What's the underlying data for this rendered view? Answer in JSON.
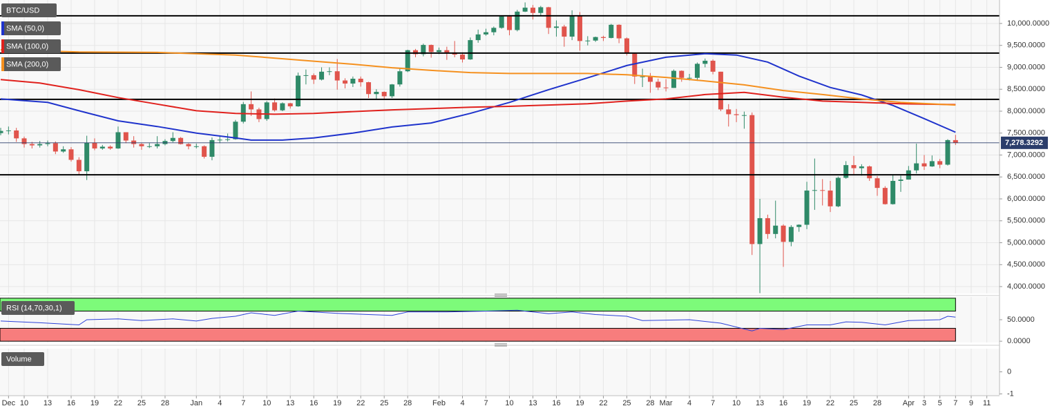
{
  "chart_data": [
    {
      "type": "candlestick",
      "title": "BTC/USD",
      "x": [
        0,
        1,
        2,
        3,
        4,
        5,
        6,
        7,
        8,
        9,
        10,
        11,
        12,
        13,
        14,
        15,
        16,
        17,
        18,
        19,
        20,
        21,
        22,
        23,
        24,
        25,
        26,
        27,
        28,
        29,
        30,
        31,
        32,
        33,
        34,
        35,
        36,
        37,
        38,
        39,
        40,
        41,
        42,
        43,
        44,
        45,
        46,
        47,
        48,
        49,
        50,
        51,
        52,
        53,
        54,
        55,
        56,
        57,
        58,
        59,
        60,
        61,
        62,
        63,
        64,
        65,
        66,
        67,
        68,
        69,
        70,
        71,
        72,
        73,
        74,
        75,
        76,
        77,
        78,
        79,
        80,
        81,
        82,
        83,
        84,
        85,
        86,
        87,
        88,
        89,
        90,
        91,
        92,
        93,
        94,
        95,
        96,
        97,
        98,
        99,
        100,
        101,
        102,
        103,
        104,
        105,
        106,
        107,
        108,
        109,
        110,
        111,
        112,
        113,
        114,
        115,
        116,
        117,
        118,
        119,
        120,
        121,
        122
      ],
      "open": [
        7500,
        7550,
        7560,
        7380,
        7250,
        7220,
        7250,
        7270,
        7080,
        7130,
        6890,
        6630,
        7280,
        7150,
        7190,
        7150,
        7520,
        7330,
        7250,
        7200,
        7200,
        7250,
        7320,
        7390,
        7250,
        7200,
        7200,
        6960,
        7340,
        7350,
        7360,
        7760,
        8160,
        8040,
        7820,
        8200,
        8020,
        8180,
        8110,
        8810,
        8820,
        8720,
        8900,
        8910,
        8700,
        8630,
        8740,
        8660,
        8390,
        8440,
        8340,
        8610,
        8910,
        9390,
        9300,
        9510,
        9350,
        9390,
        9340,
        9290,
        9180,
        9620,
        9750,
        9800,
        9900,
        10160,
        9850,
        10270,
        10360,
        10240,
        10370,
        9900,
        9930,
        9700,
        10180,
        9600,
        9610,
        9690,
        9670,
        9970,
        9660,
        9310,
        8790,
        8790,
        8670,
        8540,
        8530,
        8920,
        8760,
        8760,
        9080,
        9150,
        8900,
        8040,
        7930,
        7910,
        7910,
        4970,
        5560,
        5200,
        5390,
        5020,
        5360,
        5410,
        6190,
        6200,
        6190,
        5830,
        6480,
        6770,
        6700,
        6740,
        6470,
        6250,
        5880,
        6410,
        6440,
        6650,
        6810,
        6740,
        6860,
        6780,
        7340
      ],
      "high": [
        7620,
        7650,
        7620,
        7420,
        7300,
        7320,
        7330,
        7310,
        7200,
        7180,
        6950,
        7440,
        7380,
        7230,
        7220,
        7650,
        7520,
        7430,
        7270,
        7270,
        7430,
        7360,
        7520,
        7410,
        7270,
        7260,
        7220,
        7400,
        7420,
        7490,
        7800,
        8210,
        8450,
        8080,
        8230,
        8290,
        8200,
        8190,
        8880,
        8950,
        8860,
        9000,
        9000,
        9190,
        8750,
        8790,
        8790,
        8670,
        8500,
        8450,
        8620,
        8970,
        9400,
        9420,
        9540,
        9520,
        9450,
        9470,
        9600,
        9340,
        9680,
        9860,
        9880,
        9930,
        10170,
        10190,
        10310,
        10480,
        10420,
        10400,
        10380,
        10070,
        9970,
        10300,
        10260,
        9710,
        9700,
        9720,
        9990,
        9980,
        9680,
        9320,
        8970,
        8870,
        8740,
        8730,
        8950,
        8930,
        8850,
        9110,
        9200,
        9180,
        8900,
        8160,
        8050,
        7990,
        7970,
        6000,
        5640,
        5960,
        5420,
        5400,
        5420,
        6390,
        6920,
        6450,
        6410,
        6510,
        6860,
        6980,
        6790,
        6760,
        6520,
        6290,
        6560,
        6530,
        6750,
        7260,
        7000,
        6990,
        6910,
        7360,
        7460
      ],
      "low": [
        7450,
        7470,
        7300,
        7170,
        7150,
        7170,
        7200,
        7020,
        7050,
        6850,
        6560,
        6430,
        7110,
        7120,
        7120,
        7140,
        7270,
        7170,
        7120,
        7160,
        7150,
        7220,
        7290,
        7240,
        7130,
        7150,
        6920,
        6880,
        7270,
        7310,
        7350,
        7720,
        7890,
        7750,
        7780,
        7990,
        8000,
        8060,
        8100,
        8610,
        8620,
        8700,
        8820,
        8490,
        8520,
        8550,
        8560,
        8300,
        8260,
        8260,
        8300,
        8560,
        8890,
        9230,
        9250,
        9220,
        9300,
        9170,
        9230,
        9110,
        9170,
        9560,
        9720,
        9730,
        9880,
        9730,
        9820,
        10260,
        10090,
        10180,
        9760,
        9700,
        9470,
        9620,
        9380,
        9500,
        9580,
        9600,
        9660,
        9550,
        9270,
        8620,
        8550,
        8420,
        8480,
        8450,
        8530,
        8670,
        8700,
        8690,
        9000,
        8840,
        8000,
        7650,
        7750,
        7600,
        4720,
        3850,
        5090,
        5100,
        4450,
        4920,
        5250,
        5310,
        5750,
        5850,
        5700,
        5810,
        6460,
        6540,
        6530,
        6410,
        6070,
        5870,
        5870,
        6160,
        6440,
        6580,
        6660,
        6730,
        6700,
        6760,
        7230
      ],
      "close": [
        7550,
        7560,
        7380,
        7250,
        7220,
        7250,
        7270,
        7080,
        7130,
        6890,
        6630,
        7280,
        7150,
        7190,
        7150,
        7520,
        7330,
        7250,
        7200,
        7200,
        7250,
        7320,
        7390,
        7250,
        7200,
        7200,
        6960,
        7340,
        7350,
        7360,
        7760,
        8160,
        8040,
        7820,
        8200,
        8020,
        8180,
        8110,
        8810,
        8820,
        8720,
        8900,
        8910,
        8700,
        8630,
        8740,
        8660,
        8390,
        8440,
        8340,
        8610,
        8910,
        9390,
        9300,
        9510,
        9350,
        9390,
        9340,
        9290,
        9180,
        9620,
        9750,
        9800,
        9900,
        10160,
        9850,
        10270,
        10360,
        10240,
        10370,
        9900,
        9930,
        9700,
        10180,
        9600,
        9610,
        9690,
        9670,
        9970,
        9660,
        9310,
        8790,
        8790,
        8670,
        8540,
        8530,
        8920,
        8760,
        8760,
        9080,
        9150,
        8900,
        8040,
        7930,
        7910,
        7910,
        4970,
        5560,
        5200,
        5390,
        5020,
        5360,
        5410,
        6190,
        6200,
        6190,
        5830,
        6480,
        6770,
        6700,
        6740,
        6470,
        6250,
        5880,
        6410,
        6440,
        6650,
        6810,
        6740,
        6860,
        6780,
        7340,
        7278.3292
      ],
      "last_price_label": "7,278.3292",
      "up_color": "#2f8a68",
      "down_color": "#e0544c",
      "series": [
        {
          "name": "SMA (50,0)",
          "color": "#1f33cc",
          "x": [
            0,
            6,
            10,
            15,
            20,
            25,
            30,
            32,
            36,
            40,
            45,
            50,
            55,
            60,
            65,
            70,
            75,
            80,
            85,
            90,
            94,
            98,
            102,
            106,
            110,
            114,
            118,
            122
          ],
          "values": [
            8280,
            8200,
            8010,
            7780,
            7650,
            7500,
            7390,
            7340,
            7340,
            7390,
            7500,
            7640,
            7730,
            7950,
            8200,
            8490,
            8760,
            9040,
            9230,
            9310,
            9280,
            9120,
            8800,
            8540,
            8370,
            8130,
            7830,
            7520
          ]
        },
        {
          "name": "SMA (100,0)",
          "color": "#e0201c",
          "x": [
            0,
            5,
            10,
            15,
            20,
            25,
            30,
            35,
            40,
            45,
            50,
            55,
            60,
            65,
            70,
            75,
            80,
            85,
            90,
            95,
            100,
            105,
            110,
            115,
            122
          ],
          "values": [
            8720,
            8640,
            8490,
            8310,
            8160,
            8010,
            7950,
            7930,
            7950,
            7990,
            8030,
            8060,
            8090,
            8110,
            8140,
            8170,
            8230,
            8280,
            8380,
            8430,
            8320,
            8230,
            8200,
            8170,
            8150
          ]
        },
        {
          "name": "SMA (200,0)",
          "color": "#f5901e",
          "x": [
            0,
            10,
            20,
            30,
            40,
            45,
            50,
            55,
            60,
            65,
            70,
            75,
            80,
            85,
            90,
            95,
            100,
            105,
            110,
            115,
            122
          ],
          "values": [
            9400,
            9350,
            9340,
            9280,
            9140,
            9070,
            8990,
            8930,
            8880,
            8860,
            8860,
            8860,
            8830,
            8770,
            8690,
            8600,
            8470,
            8380,
            8280,
            8200,
            8140
          ]
        }
      ],
      "hlines": [
        10175,
        9325,
        8270,
        6550
      ],
      "xlim": [
        -0.09,
        127.62
      ],
      "ylim": [
        3843,
        10535
      ],
      "yticks": [
        {
          "value": 4000,
          "label": "4,000.0000"
        },
        {
          "value": 4500,
          "label": "4,500.0000"
        },
        {
          "value": 5000,
          "label": "5,000.0000"
        },
        {
          "value": 5500,
          "label": "5,500.0000"
        },
        {
          "value": 6000,
          "label": "6,000.0000"
        },
        {
          "value": 6500,
          "label": "6,500.0000"
        },
        {
          "value": 7000,
          "label": "7,000.0000"
        },
        {
          "value": 7500,
          "label": "7,500.0000"
        },
        {
          "value": 8000,
          "label": "8,000.0000"
        },
        {
          "value": 8500,
          "label": "8,500.0000"
        },
        {
          "value": 9000,
          "label": "9,000.0000"
        },
        {
          "value": 9500,
          "label": "9,500.0000"
        },
        {
          "value": 10000,
          "label": "10,000.0000"
        }
      ],
      "xticks": [
        {
          "value": 1,
          "label": "Dec"
        },
        {
          "value": 3,
          "label": "10"
        },
        {
          "value": 6,
          "label": "13"
        },
        {
          "value": 9,
          "label": "16"
        },
        {
          "value": 12,
          "label": "19"
        },
        {
          "value": 15,
          "label": "22"
        },
        {
          "value": 18,
          "label": "25"
        },
        {
          "value": 21,
          "label": "28"
        },
        {
          "value": 25,
          "label": "Jan"
        },
        {
          "value": 28,
          "label": "4"
        },
        {
          "value": 31,
          "label": "7"
        },
        {
          "value": 34,
          "label": "10"
        },
        {
          "value": 37,
          "label": "13"
        },
        {
          "value": 40,
          "label": "16"
        },
        {
          "value": 43,
          "label": "19"
        },
        {
          "value": 46,
          "label": "22"
        },
        {
          "value": 49,
          "label": "25"
        },
        {
          "value": 52,
          "label": "28"
        },
        {
          "value": 56,
          "label": "Feb"
        },
        {
          "value": 59,
          "label": "4"
        },
        {
          "value": 62,
          "label": "7"
        },
        {
          "value": 65,
          "label": "10"
        },
        {
          "value": 68,
          "label": "13"
        },
        {
          "value": 71,
          "label": "16"
        },
        {
          "value": 74,
          "label": "19"
        },
        {
          "value": 77,
          "label": "22"
        },
        {
          "value": 80,
          "label": "25"
        },
        {
          "value": 83,
          "label": "28"
        },
        {
          "value": 85,
          "label": "Mar"
        },
        {
          "value": 88,
          "label": "4"
        },
        {
          "value": 91,
          "label": "7"
        },
        {
          "value": 94,
          "label": "10"
        },
        {
          "value": 97,
          "label": "13"
        },
        {
          "value": 100,
          "label": "16"
        },
        {
          "value": 103,
          "label": "19"
        },
        {
          "value": 106,
          "label": "22"
        },
        {
          "value": 109,
          "label": "25"
        },
        {
          "value": 112,
          "label": "28"
        },
        {
          "value": 116,
          "label": "Apr"
        },
        {
          "value": 118,
          "label": "3"
        },
        {
          "value": 120,
          "label": "5"
        },
        {
          "value": 122,
          "label": "7"
        },
        {
          "value": 124,
          "label": "9"
        },
        {
          "value": 126,
          "label": "11"
        }
      ],
      "grid": true
    },
    {
      "type": "line",
      "title": "RSI (14,70,30,1)",
      "series": [
        {
          "color": "#2a40d8",
          "x": [
            0,
            5,
            10,
            11,
            15,
            18,
            22,
            25,
            27,
            30,
            32,
            35,
            38,
            43,
            47,
            50,
            52,
            57,
            62,
            66,
            70,
            73,
            76,
            80,
            82,
            88,
            92,
            96,
            97,
            100,
            103,
            106,
            108,
            110,
            113,
            116,
            120,
            121,
            122
          ],
          "values": [
            47,
            43,
            38,
            50,
            52,
            48,
            52,
            47,
            53,
            58,
            66,
            60,
            70,
            65,
            62,
            60,
            68,
            68,
            70,
            72,
            64,
            68,
            62,
            58,
            48,
            50,
            42,
            24,
            30,
            27,
            38,
            38,
            45,
            44,
            38,
            48,
            50,
            58,
            56
          ]
        }
      ],
      "bands": [
        {
          "range": [
            70,
            100
          ],
          "color": "#7dfb7a"
        },
        {
          "range": [
            0,
            30
          ],
          "color": "#f77d7d"
        }
      ],
      "ylim": [
        -3,
        103
      ],
      "yticks": [
        {
          "value": 0,
          "label": "0.0000"
        },
        {
          "value": 50,
          "label": "50.0000"
        }
      ]
    },
    {
      "type": "volume",
      "title": "Volume",
      "ylim": [
        -1.05,
        1.05
      ],
      "yticks": [
        -1,
        0
      ]
    }
  ]
}
